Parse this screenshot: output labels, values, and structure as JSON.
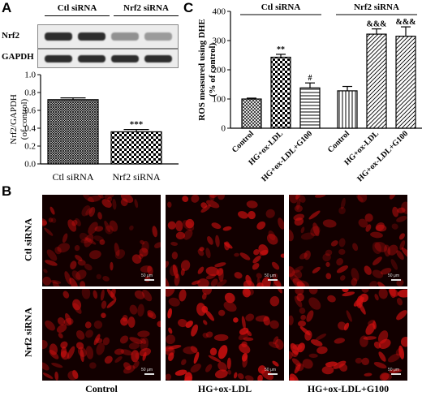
{
  "panel_labels": {
    "a": "A",
    "b": "B",
    "c": "C"
  },
  "blot": {
    "headers": [
      "Ctl siRNA",
      "Nrf2 siRNA"
    ],
    "rows": [
      "Nrf2",
      "GAPDH"
    ],
    "nrf2_band_intensity": [
      0.95,
      0.95,
      0.45,
      0.4
    ],
    "gapdh_band_intensity": [
      0.95,
      0.95,
      0.95,
      0.95
    ]
  },
  "colors": {
    "bar_fill": "#ffffff",
    "stroke": "#000000",
    "cell_red": "#d41010",
    "micro_bg": "#120000"
  },
  "chart_data": [
    {
      "type": "bar",
      "ylabel": "Nrf2/GAPDH\n(of control)",
      "categories": [
        "Ctl siRNA",
        "Nrf2 siRNA"
      ],
      "values": [
        0.72,
        0.36
      ],
      "errors": [
        0.02,
        0.025
      ],
      "annotations": [
        "",
        "***"
      ],
      "patterns": [
        "dense-crosshatch",
        "checker"
      ],
      "ylim": [
        0,
        1.0
      ],
      "yticks": [
        0.0,
        0.2,
        0.4,
        0.6,
        0.8,
        1.0
      ],
      "ytick_labels": [
        "0.0",
        "0.2",
        "0.4",
        "0.6",
        "0.8",
        "1.0"
      ]
    },
    {
      "type": "bar",
      "ylabel": "ROS measured using DHE\n(% of control)",
      "group_labels": [
        "Ctl siRNA",
        "Nrf2 siRNA"
      ],
      "categories": [
        "Control",
        "HG+ox-LDL",
        "HG+ox-LDL+G100",
        "Control",
        "HG+ox-LDL",
        "HG+ox-LDL+G100"
      ],
      "values": [
        100,
        243,
        138,
        128,
        322,
        315
      ],
      "errors": [
        3,
        10,
        17,
        15,
        18,
        32
      ],
      "annotations": [
        "",
        "**",
        "#",
        "",
        "&&&",
        "&&&"
      ],
      "patterns": [
        "crosshatch",
        "checker",
        "horizontal",
        "vertical",
        "diagonal",
        "diagonal"
      ],
      "ylim": [
        0,
        400
      ],
      "yticks": [
        0,
        100,
        200,
        300,
        400
      ],
      "ytick_labels": [
        "0",
        "100",
        "200",
        "300",
        "400"
      ]
    }
  ],
  "microscopy": {
    "row_labels": [
      "Ctl siRNA",
      "Nrf2 siRNA"
    ],
    "col_labels": [
      "Control",
      "HG+ox-LDL",
      "HG+ox-LDL+G100"
    ],
    "scale_bar_text": "50 μm",
    "brightness": [
      [
        0.55,
        0.75,
        0.6
      ],
      [
        0.7,
        0.9,
        0.85
      ]
    ]
  }
}
